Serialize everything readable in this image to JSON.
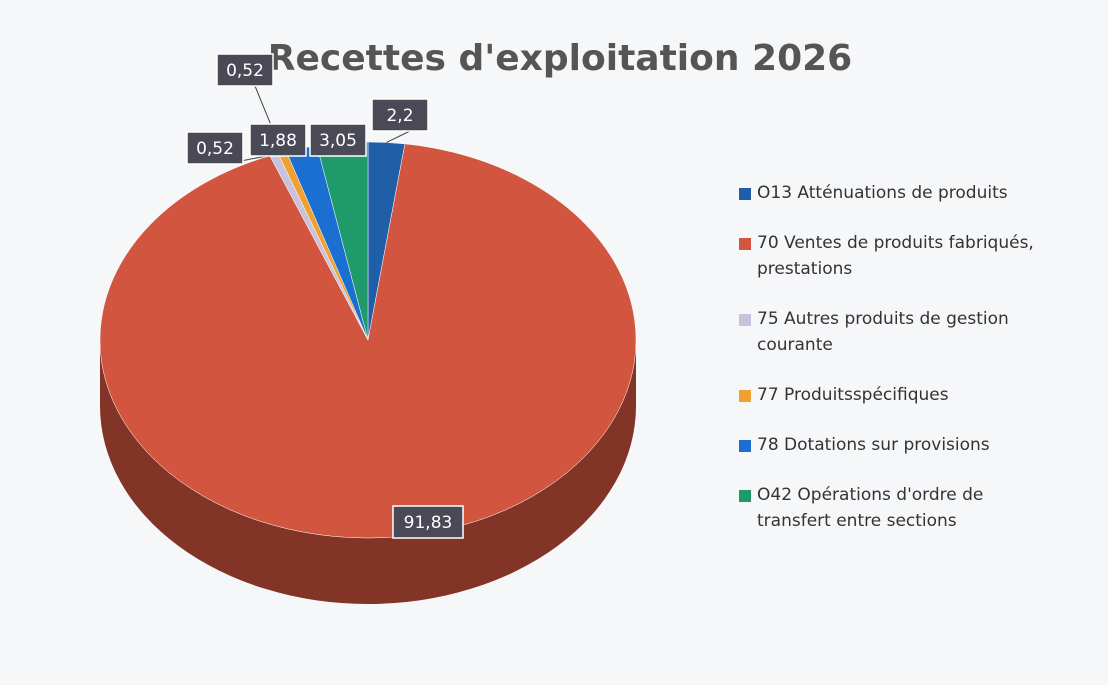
{
  "chart_data": {
    "type": "pie",
    "title": "Recettes d'exploitation 2026",
    "categories": [
      "O13 Atténuations de produits",
      "70 Ventes de produits fabriqués, prestations",
      "75 Autres produits de gestion courante",
      "77 Produitsspécifiques",
      "78 Dotations sur provisions",
      "O42 Opérations d'ordre de transfert entre sections"
    ],
    "values": [
      2.2,
      91.83,
      0.52,
      0.52,
      1.88,
      3.05
    ],
    "value_labels": [
      "2,2",
      "91,83",
      "0,52",
      "0,52",
      "1,88",
      "3,05"
    ],
    "colors": [
      "#1f5fa8",
      "#d2553f",
      "#c8c2dc",
      "#f0a030",
      "#1a6fd0",
      "#1f9a6a"
    ],
    "legend": "right"
  }
}
